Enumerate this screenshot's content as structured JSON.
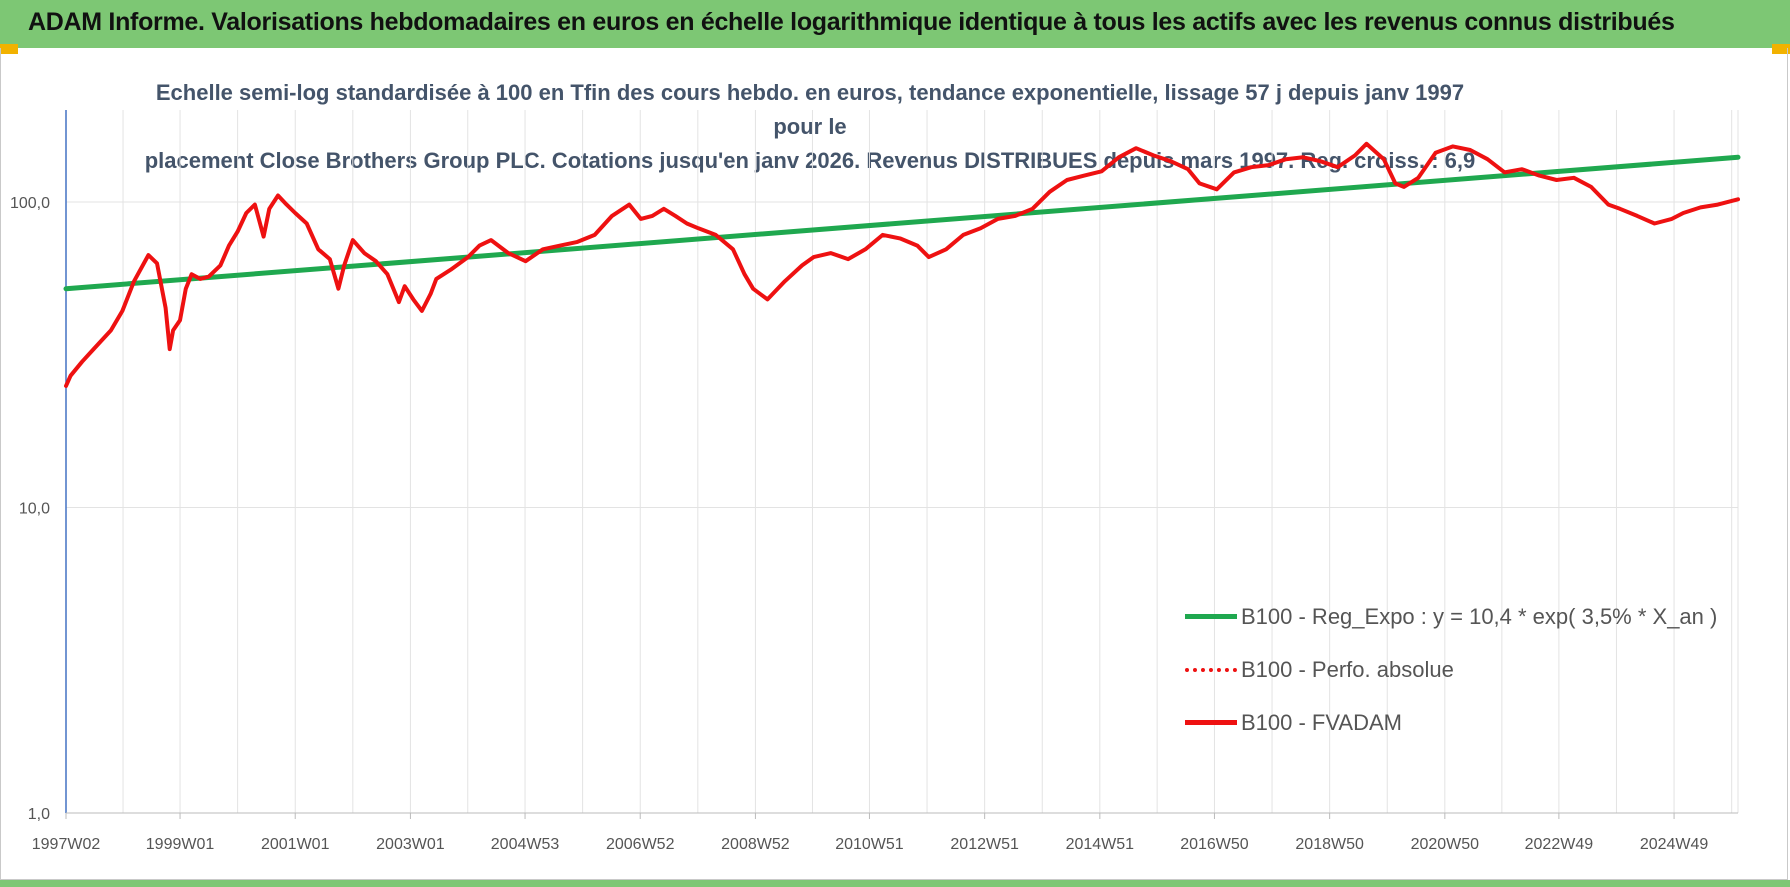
{
  "header": {
    "title": "ADAM Informe. Valorisations hebdomadaires en euros en échelle logarithmique identique à tous les actifs avec les revenus connus distribués"
  },
  "colors": {
    "banner": "#7dc774",
    "trend": "#1fa84f",
    "series": "#ee1111",
    "title_text": "#44546a"
  },
  "chart_data": {
    "type": "line",
    "title_line1": "Echelle semi-log standardisée à 100 en Tfin des cours hebdo. en euros, tendance exponentielle, lissage 57 j depuis janv 1997 pour le",
    "title_line2": "placement Close Brothers Group PLC. Cotations jusqu'en janv 2026. Revenus DISTRIBUES depuis mars 1997. Reg. croiss. : 6,9",
    "y_scale": "log",
    "ylim": [
      1,
      200
    ],
    "y_ticks": [
      1,
      10,
      100
    ],
    "y_tick_labels": [
      "1,0",
      "10,0",
      "100,0"
    ],
    "x_range": [
      1997.02,
      2026.05
    ],
    "x_ticks": [
      1997.02,
      1999.0,
      2001.0,
      2003.0,
      2004.99,
      2006.99,
      2008.99,
      2010.97,
      2012.97,
      2014.97,
      2016.96,
      2018.96,
      2020.96,
      2022.94,
      2024.94
    ],
    "x_tick_labels": [
      "1997W02",
      "1999W01",
      "2001W01",
      "2003W01",
      "2004W53",
      "2006W52",
      "2008W52",
      "2010W51",
      "2012W51",
      "2014W51",
      "2016W50",
      "2018W50",
      "2020W50",
      "2022W49",
      "2024W49"
    ],
    "grid": "vertical",
    "legend_position": "bottom-right",
    "legend": [
      {
        "label": "B100 - Reg_Expo : y = 10,4 * exp( 3,5% *  X_an )",
        "style": "solid-green"
      },
      {
        "label": "B100 - Perfo. absolue",
        "style": "dotted-red"
      },
      {
        "label": "B100 - FVADAM",
        "style": "solid-red"
      }
    ],
    "series": [
      {
        "name": "B100 - Reg_Expo : y = 10,4 * exp( 3,5% *  X_an )",
        "x": [
          1997.02,
          2026.05
        ],
        "y": [
          52,
          140
        ]
      },
      {
        "name": "B100 - FVADAM",
        "x": [
          1997.02,
          1997.1,
          1997.3,
          1997.5,
          1997.8,
          1998.0,
          1998.2,
          1998.45,
          1998.6,
          1998.75,
          1998.82,
          1998.88,
          1999.0,
          1999.1,
          1999.2,
          1999.35,
          1999.5,
          1999.7,
          1999.85,
          2000.0,
          2000.15,
          2000.3,
          2000.45,
          2000.55,
          2000.7,
          2000.85,
          2001.0,
          2001.2,
          2001.4,
          2001.6,
          2001.75,
          2001.85,
          2002.0,
          2002.2,
          2002.4,
          2002.6,
          2002.8,
          2002.9,
          2003.05,
          2003.2,
          2003.35,
          2003.45,
          2003.7,
          2004.0,
          2004.2,
          2004.4,
          2004.7,
          2005.0,
          2005.3,
          2005.6,
          2005.9,
          2006.2,
          2006.5,
          2006.8,
          2007.0,
          2007.2,
          2007.4,
          2007.6,
          2007.8,
          2008.0,
          2008.3,
          2008.6,
          2008.8,
          2008.95,
          2009.2,
          2009.5,
          2009.8,
          2010.0,
          2010.3,
          2010.6,
          2010.9,
          2011.2,
          2011.5,
          2011.8,
          2012.0,
          2012.3,
          2012.6,
          2012.9,
          2013.2,
          2013.5,
          2013.8,
          2014.1,
          2014.4,
          2014.7,
          2015.0,
          2015.3,
          2015.6,
          2015.9,
          2016.2,
          2016.5,
          2016.7,
          2017.0,
          2017.3,
          2017.6,
          2017.9,
          2018.2,
          2018.5,
          2018.8,
          2019.1,
          2019.4,
          2019.6,
          2019.9,
          2020.1,
          2020.25,
          2020.5,
          2020.8,
          2021.1,
          2021.4,
          2021.7,
          2022.0,
          2022.3,
          2022.6,
          2022.9,
          2023.2,
          2023.5,
          2023.8,
          2024.0,
          2024.3,
          2024.6,
          2024.9,
          2025.1,
          2025.4,
          2025.7,
          2026.05
        ],
        "y": [
          25,
          27,
          30,
          33,
          38,
          44,
          55,
          67,
          63,
          45,
          33,
          38,
          41,
          52,
          58,
          56,
          57,
          62,
          72,
          80,
          92,
          98,
          77,
          95,
          105,
          98,
          92,
          85,
          70,
          65,
          52,
          62,
          75,
          68,
          64,
          58,
          47,
          53,
          48,
          44,
          50,
          56,
          60,
          66,
          72,
          75,
          68,
          64,
          70,
          72,
          74,
          78,
          90,
          98,
          88,
          90,
          95,
          90,
          85,
          82,
          78,
          70,
          58,
          52,
          48,
          55,
          62,
          66,
          68,
          65,
          70,
          78,
          76,
          72,
          66,
          70,
          78,
          82,
          88,
          90,
          95,
          108,
          118,
          122,
          126,
          140,
          150,
          142,
          136,
          128,
          115,
          110,
          125,
          130,
          132,
          138,
          140,
          136,
          130,
          142,
          155,
          138,
          115,
          112,
          120,
          145,
          152,
          148,
          138,
          125,
          128,
          122,
          118,
          120,
          112,
          98,
          95,
          90,
          85,
          88,
          92,
          96,
          98,
          102
        ]
      }
    ]
  }
}
